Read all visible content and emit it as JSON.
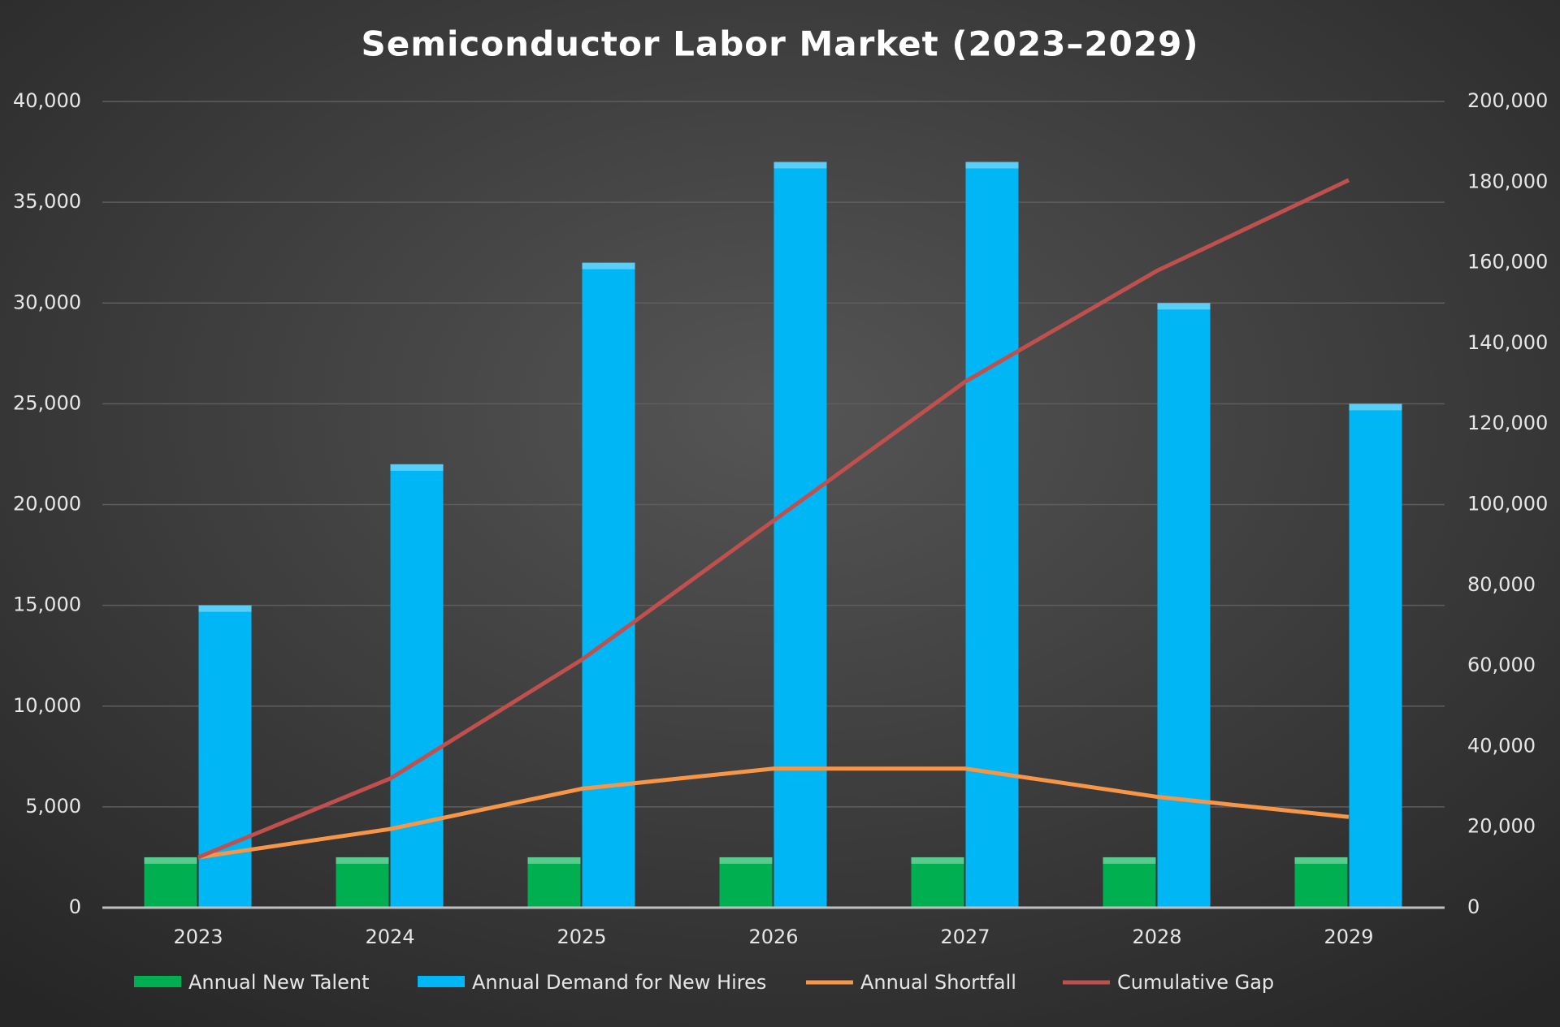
{
  "chart_data": {
    "type": "bar-line",
    "title": "Semiconductor Labor Market (2023–2029)",
    "categories": [
      "2023",
      "2024",
      "2025",
      "2026",
      "2027",
      "2028",
      "2029"
    ],
    "series": [
      {
        "name": "Annual New Talent",
        "type": "bar",
        "color": "#00b050",
        "values": [
          2500,
          2500,
          2500,
          2500,
          2500,
          2500,
          2500
        ]
      },
      {
        "name": "Annual Demand for New Hires",
        "type": "bar",
        "color": "#00b6f5",
        "values": [
          15000,
          22000,
          32000,
          37000,
          37000,
          30000,
          25000
        ]
      },
      {
        "name": "Annual Shortfall",
        "type": "line",
        "axis": "y2",
        "color": "#f79646",
        "values": [
          12500,
          19500,
          29500,
          34500,
          34500,
          27500,
          22500
        ]
      },
      {
        "name": "Cumulative Gap",
        "type": "line",
        "axis": "y2",
        "color": "#c0504d",
        "values": [
          12500,
          32000,
          61500,
          96000,
          130500,
          158000,
          180500
        ]
      }
    ],
    "ylim": [
      0,
      40000
    ],
    "yticks": [
      0,
      {
        "value": 5000,
        "label": "5,000"
      },
      {
        "value": 10000,
        "label": "10,000"
      },
      {
        "value": 15000,
        "label": "15,000"
      },
      {
        "value": 20000,
        "label": "20,000"
      },
      {
        "value": 25000,
        "label": "25,000"
      },
      {
        "value": 30000,
        "label": "30,000"
      },
      {
        "value": 35000,
        "label": "35,000"
      },
      {
        "value": 40000,
        "label": "40,000"
      }
    ],
    "y2lim": [
      0,
      200000
    ],
    "y2ticks": [
      0,
      {
        "value": 20000,
        "label": "20,000"
      },
      {
        "value": 40000,
        "label": "40,000"
      },
      {
        "value": 60000,
        "label": "60,000"
      },
      {
        "value": 80000,
        "label": "80,000"
      },
      {
        "value": 100000,
        "label": "100,000"
      },
      {
        "value": 120000,
        "label": "120,000"
      },
      {
        "value": 140000,
        "label": "140,000"
      },
      {
        "value": 160000,
        "label": "160,000"
      },
      {
        "value": 180000,
        "label": "180,000"
      },
      {
        "value": 200000,
        "label": "200,000"
      }
    ],
    "grid": true,
    "legend": "bottom"
  }
}
